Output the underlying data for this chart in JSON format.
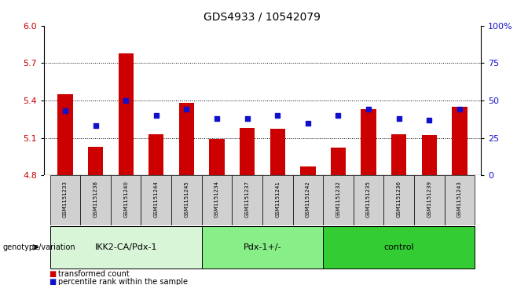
{
  "title": "GDS4933 / 10542079",
  "samples": [
    "GSM1151233",
    "GSM1151238",
    "GSM1151240",
    "GSM1151244",
    "GSM1151245",
    "GSM1151234",
    "GSM1151237",
    "GSM1151241",
    "GSM1151242",
    "GSM1151232",
    "GSM1151235",
    "GSM1151236",
    "GSM1151239",
    "GSM1151243"
  ],
  "bar_values": [
    5.45,
    5.03,
    5.78,
    5.13,
    5.38,
    5.09,
    5.18,
    5.17,
    4.87,
    5.02,
    5.33,
    5.13,
    5.12,
    5.35
  ],
  "dot_values": [
    43,
    33,
    50,
    40,
    44,
    38,
    38,
    40,
    35,
    40,
    44,
    38,
    37,
    44
  ],
  "ymin": 4.8,
  "ymax": 6.0,
  "yticks_left": [
    4.8,
    5.1,
    5.4,
    5.7,
    6.0
  ],
  "yticks_right": [
    0,
    25,
    50,
    75,
    100
  ],
  "bar_color": "#cc0000",
  "dot_color": "#1111cc",
  "groups": [
    {
      "label": "IKK2-CA/Pdx-1",
      "start": 0,
      "end": 5,
      "color": "#d8f5d8"
    },
    {
      "label": "Pdx-1+/-",
      "start": 5,
      "end": 9,
      "color": "#88ee88"
    },
    {
      "label": "control",
      "start": 9,
      "end": 14,
      "color": "#44cc44"
    }
  ],
  "legend_bar_label": "transformed count",
  "legend_dot_label": "percentile rank within the sample",
  "xlabel_left": "genotype/variation",
  "tick_label_color_left": "#cc0000",
  "tick_label_color_right": "#1111cc",
  "bar_width": 0.5,
  "sample_box_color": "#d0d0d0",
  "figsize": [
    6.58,
    3.63
  ],
  "dpi": 100
}
